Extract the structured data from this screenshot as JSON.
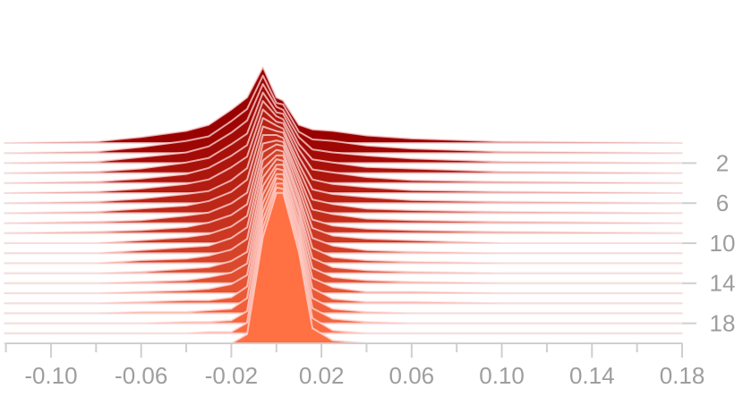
{
  "chart_data": {
    "type": "ridgeline",
    "x": [
      -0.12,
      -0.08,
      -0.06,
      -0.04,
      -0.03,
      -0.02,
      -0.013,
      -0.006,
      0,
      0.003,
      0.01,
      0.016,
      0.025,
      0.04,
      0.06,
      0.1,
      0.18
    ],
    "steps": [
      0,
      1,
      2,
      3,
      4,
      5,
      6,
      7,
      8,
      9,
      10,
      11,
      12,
      13,
      14,
      15,
      16,
      17,
      18,
      19,
      20
    ],
    "series": [
      {
        "values": [
          0,
          1,
          4,
          8,
          12,
          22,
          30,
          50,
          30,
          28,
          12,
          9,
          8,
          5,
          3,
          1,
          0
        ]
      },
      {
        "values": [
          0,
          1,
          4,
          8,
          11,
          21,
          29,
          51,
          33,
          32,
          14,
          9,
          8,
          5,
          3,
          1,
          0
        ]
      },
      {
        "values": [
          0,
          1,
          4,
          7,
          11,
          20,
          28,
          52,
          37,
          35,
          17,
          9,
          7,
          5,
          3,
          1,
          0
        ]
      },
      {
        "values": [
          0,
          1,
          3,
          7,
          10,
          19,
          26,
          53,
          40,
          39,
          19,
          9,
          7,
          4,
          3,
          1,
          0
        ]
      },
      {
        "values": [
          0,
          1,
          3,
          6,
          10,
          18,
          25,
          54,
          44,
          42,
          22,
          9,
          7,
          4,
          2,
          1,
          0
        ]
      },
      {
        "values": [
          0,
          1,
          3,
          6,
          9,
          17,
          24,
          55,
          47,
          46,
          24,
          9,
          6,
          4,
          2,
          1,
          0
        ]
      },
      {
        "values": [
          0,
          1,
          3,
          6,
          8,
          15,
          23,
          56,
          51,
          49,
          26,
          9,
          6,
          4,
          2,
          1,
          0
        ]
      },
      {
        "values": [
          0,
          1,
          3,
          5,
          8,
          14,
          22,
          57,
          54,
          53,
          29,
          9,
          6,
          3,
          2,
          1,
          0
        ]
      },
      {
        "values": [
          0,
          1,
          2,
          5,
          7,
          13,
          20,
          58,
          58,
          56,
          31,
          9,
          6,
          3,
          2,
          1,
          0
        ]
      },
      {
        "values": [
          0,
          1,
          2,
          4,
          7,
          12,
          19,
          59,
          61,
          60,
          34,
          9,
          5,
          3,
          2,
          1,
          0
        ]
      },
      {
        "values": [
          0,
          0,
          2,
          4,
          6,
          11,
          18,
          60,
          65,
          64,
          36,
          10,
          5,
          3,
          2,
          0,
          0
        ]
      },
      {
        "values": [
          0,
          0,
          2,
          4,
          5,
          10,
          17,
          61,
          68,
          67,
          38,
          10,
          5,
          2,
          1,
          0,
          0
        ]
      },
      {
        "values": [
          0,
          0,
          2,
          3,
          5,
          9,
          16,
          62,
          71,
          71,
          41,
          10,
          4,
          2,
          1,
          0,
          0
        ]
      },
      {
        "values": [
          0,
          0,
          1,
          3,
          4,
          8,
          14,
          63,
          75,
          74,
          43,
          10,
          4,
          2,
          1,
          0,
          0
        ]
      },
      {
        "values": [
          0,
          0,
          1,
          2,
          4,
          7,
          13,
          64,
          78,
          78,
          46,
          10,
          4,
          2,
          1,
          0,
          0
        ]
      },
      {
        "values": [
          0,
          0,
          1,
          2,
          3,
          6,
          12,
          65,
          82,
          81,
          48,
          10,
          4,
          1,
          1,
          0,
          0
        ]
      },
      {
        "values": [
          0,
          0,
          1,
          2,
          2,
          4,
          11,
          66,
          85,
          85,
          50,
          10,
          3,
          1,
          1,
          0,
          0
        ]
      },
      {
        "values": [
          0,
          0,
          1,
          1,
          2,
          3,
          10,
          67,
          89,
          88,
          53,
          10,
          3,
          1,
          0,
          0,
          0
        ]
      },
      {
        "values": [
          0,
          0,
          0,
          1,
          1,
          2,
          8,
          68,
          92,
          92,
          55,
          10,
          3,
          1,
          0,
          0,
          0
        ]
      },
      {
        "values": [
          0,
          0,
          0,
          0,
          1,
          1,
          7,
          69,
          96,
          95,
          58,
          10,
          2,
          0,
          0,
          0,
          0
        ]
      },
      {
        "values": [
          0,
          0,
          0,
          0,
          0,
          0,
          6,
          70,
          99,
          99,
          60,
          10,
          2,
          0,
          0,
          0,
          0
        ]
      }
    ],
    "color_range": [
      "#990000",
      "#ff7043"
    ],
    "xlim": [
      -0.12,
      0.18
    ],
    "xticks": [
      {
        "value": -0.1,
        "label": "-0.10"
      },
      -0.06,
      -0.02,
      0.02,
      0.06,
      {
        "value": 0.1,
        "label": "0.10"
      },
      0.14,
      0.18
    ],
    "xminorticks": [
      -0.12,
      -0.08,
      -0.04,
      0,
      0.04,
      0.08,
      0.12,
      0.16
    ],
    "y2lim": [
      0,
      20
    ],
    "y2ticks": [
      2,
      6,
      10,
      14,
      18
    ],
    "zlim": [
      0,
      100
    ]
  }
}
